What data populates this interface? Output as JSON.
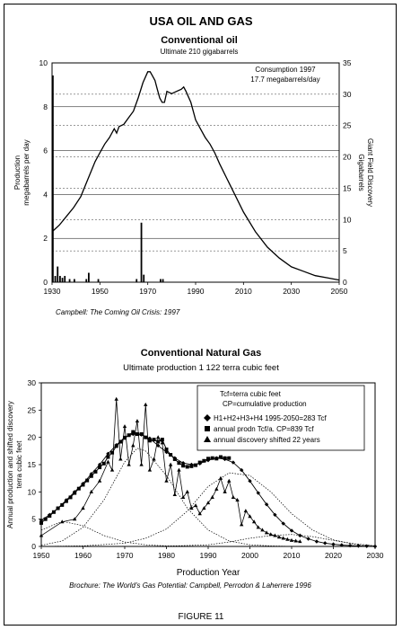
{
  "page_title": "USA OIL AND GAS",
  "figure_label": "FIGURE 11",
  "chart_data": [
    {
      "type": "line",
      "title": "Conventional oil",
      "subtitle": "Ultimate 210 gigabarrels",
      "annotation_line1": "Consumption 1997",
      "annotation_line2": "17.7 megabarrels/day",
      "ylabel_left_line1": "Production",
      "ylabel_left_line2": "megabarrels per day",
      "ylabel_right_line1": "Giant Field Discovery",
      "ylabel_right_line2": "Gigabarrels",
      "caption": "Campbell:  The Coming Oil Crisis:  1997",
      "xlim": [
        1930,
        2050
      ],
      "ylim_left": [
        0,
        10
      ],
      "ylim_right": [
        0,
        35
      ],
      "x_ticks": [
        1930,
        1950,
        1970,
        1990,
        2010,
        2030,
        2050
      ],
      "y_ticks_left": [
        0,
        2,
        4,
        6,
        8,
        10
      ],
      "y_ticks_right": [
        0,
        5,
        10,
        15,
        20,
        25,
        30,
        35
      ],
      "production": {
        "x": [
          1930,
          1933,
          1936,
          1939,
          1942,
          1945,
          1948,
          1950,
          1952,
          1954,
          1956,
          1957,
          1958,
          1960,
          1962,
          1964,
          1966,
          1968,
          1970,
          1971,
          1972,
          1973,
          1974,
          1975,
          1976,
          1977,
          1978,
          1980,
          1982,
          1984,
          1985,
          1986,
          1988,
          1990,
          1992,
          1994,
          1996,
          1998,
          2000,
          2005,
          2010,
          2015,
          2020,
          2025,
          2030,
          2035,
          2040,
          2045,
          2050
        ],
        "y": [
          2.3,
          2.6,
          3.0,
          3.4,
          3.9,
          4.7,
          5.5,
          5.9,
          6.3,
          6.6,
          7.0,
          6.8,
          7.1,
          7.2,
          7.5,
          7.8,
          8.4,
          9.1,
          9.6,
          9.6,
          9.4,
          9.2,
          8.8,
          8.4,
          8.2,
          8.2,
          8.7,
          8.6,
          8.7,
          8.8,
          8.9,
          8.7,
          8.2,
          7.4,
          7.0,
          6.6,
          6.3,
          5.9,
          5.4,
          4.3,
          3.2,
          2.3,
          1.6,
          1.1,
          0.7,
          0.5,
          0.3,
          0.2,
          0.1
        ]
      },
      "discovery_bars": {
        "x": [
          1930,
          1931,
          1932,
          1933,
          1934,
          1935,
          1937,
          1939,
          1944,
          1945,
          1949,
          1965,
          1967,
          1968,
          1975,
          1976
        ],
        "y": [
          33.0,
          1.0,
          2.5,
          1.0,
          0.7,
          1.0,
          0.5,
          0.5,
          0.5,
          1.5,
          0.5,
          0.5,
          9.5,
          1.2,
          0.5,
          0.5
        ]
      }
    },
    {
      "type": "line",
      "title": "Conventional  Natural  Gas",
      "subtitle": "Ultimate production 1 122 terra cubic feet",
      "ylabel_line1": "Annual production and  shifted discovery",
      "ylabel_line2": "terra cubic feet",
      "xlabel": "Production  Year",
      "caption": "Brochure:  The World's Gas Potential:  Campbell, Perrodon & Laherrere 1996",
      "xlim": [
        1950,
        2030
      ],
      "ylim": [
        0,
        30
      ],
      "x_ticks": [
        1950,
        1960,
        1970,
        1980,
        1990,
        2000,
        2010,
        2020,
        2030
      ],
      "y_ticks": [
        0,
        5,
        10,
        15,
        20,
        25,
        30
      ],
      "legend": {
        "note1": "Tcf=terra cubic feet",
        "note2": "CP=cumulative production",
        "entries": [
          "H1+H2+H3+H4 1995-2050=283  Tcf",
          "annual prodn Tcf/a.  CP=839 Tcf",
          "annual discovery shifted 22 years"
        ]
      },
      "series": [
        {
          "x": [
            1950,
            1952,
            1954,
            1956,
            1958,
            1960,
            1962,
            1964,
            1966,
            1968,
            1970,
            1972,
            1974,
            1976,
            1978,
            1980,
            1982,
            1984,
            1986,
            1988,
            1990,
            1992,
            1994,
            1996,
            1998,
            2000,
            2002,
            2004,
            2006,
            2008,
            2010,
            2012,
            2014,
            2016,
            2018,
            2020,
            2022,
            2024,
            2026,
            2028,
            2030
          ],
          "y": [
            4.8,
            5.8,
            7.0,
            8.5,
            10.0,
            11.5,
            13.3,
            15.0,
            17.0,
            18.6,
            20.0,
            20.6,
            20.5,
            19.8,
            18.5,
            17.3,
            16.2,
            15.3,
            15.0,
            15.2,
            15.8,
            16.2,
            16.0,
            15.4,
            14.0,
            12.0,
            9.8,
            7.7,
            5.8,
            4.2,
            2.9,
            2.0,
            1.4,
            0.9,
            0.6,
            0.4,
            0.25,
            0.15,
            0.1,
            0.05,
            0.0
          ]
        },
        {
          "x": [
            1950,
            1951,
            1952,
            1953,
            1954,
            1955,
            1956,
            1957,
            1958,
            1959,
            1960,
            1961,
            1962,
            1963,
            1964,
            1965,
            1966,
            1967,
            1968,
            1969,
            1970,
            1971,
            1972,
            1973,
            1974,
            1975,
            1976,
            1977,
            1978,
            1979,
            1980,
            1981,
            1982,
            1983,
            1984,
            1985,
            1986,
            1987,
            1988,
            1989,
            1990,
            1991,
            1992,
            1993,
            1994,
            1995
          ],
          "y": [
            4.3,
            5.0,
            5.6,
            6.3,
            7.0,
            7.6,
            8.3,
            9.0,
            9.8,
            10.6,
            11.3,
            12.1,
            12.9,
            13.7,
            14.5,
            15.2,
            16.4,
            17.2,
            18.4,
            19.2,
            19.9,
            20.4,
            21.0,
            20.6,
            20.6,
            20.0,
            19.4,
            19.6,
            19.2,
            19.6,
            17.8,
            16.8,
            16.0,
            15.3,
            14.8,
            14.6,
            14.7,
            14.9,
            15.4,
            15.7,
            16.1,
            16.2,
            16.1,
            16.4,
            16.2,
            16.2
          ]
        },
        {
          "x": [
            1950,
            1955,
            1958,
            1960,
            1962,
            1964,
            1966,
            1967,
            1968,
            1969,
            1970,
            1971,
            1972,
            1973,
            1974,
            1975,
            1976,
            1977,
            1978,
            1979,
            1980,
            1981,
            1982,
            1983,
            1984,
            1985,
            1986,
            1987,
            1988,
            1989,
            1990,
            1991,
            1992,
            1993,
            1994,
            1995,
            1996,
            1997,
            1998,
            1999,
            2000,
            2001,
            2002,
            2003,
            2004,
            2005,
            2006,
            2007,
            2008,
            2009,
            2010,
            2011,
            2012
          ],
          "y": [
            2.0,
            4.5,
            5.0,
            7.0,
            10.0,
            12.0,
            15.5,
            14.0,
            27.0,
            16.0,
            22.0,
            15.0,
            18.5,
            23.0,
            15.0,
            26.0,
            14.0,
            16.0,
            20.0,
            19.0,
            12.0,
            15.0,
            9.5,
            14.0,
            9.0,
            10.0,
            7.0,
            7.5,
            6.0,
            7.0,
            8.0,
            9.0,
            10.5,
            12.5,
            10.0,
            12.0,
            9.0,
            8.5,
            4.0,
            6.5,
            5.5,
            4.5,
            3.5,
            3.0,
            2.5,
            2.2,
            2.0,
            1.7,
            1.5,
            1.3,
            1.1,
            1.0,
            0.9
          ]
        },
        {
          "x": [
            1950,
            1955,
            1960,
            1965,
            1970,
            1975,
            1980,
            1985,
            1990,
            1995,
            2000,
            2005,
            2010,
            2015,
            2020,
            2025,
            2030
          ],
          "y": [
            3.0,
            4.6,
            3.8,
            2.0,
            0.8,
            0.3,
            0.1,
            0.05,
            0.0,
            0.0,
            0.0,
            0.0,
            0.0,
            0.0,
            0.0,
            0.0,
            0.0
          ]
        },
        {
          "x": [
            1950,
            1955,
            1960,
            1965,
            1970,
            1973,
            1975,
            1980,
            1985,
            1990,
            1995,
            2000,
            2005,
            2010,
            2015,
            2020,
            2025,
            2030
          ],
          "y": [
            0.2,
            1.0,
            3.5,
            8.5,
            15.5,
            18.0,
            17.5,
            13.0,
            7.0,
            3.0,
            1.0,
            0.3,
            0.1,
            0.0,
            0.0,
            0.0,
            0.0,
            0.0
          ]
        },
        {
          "x": [
            1950,
            1960,
            1970,
            1975,
            1980,
            1985,
            1990,
            1995,
            2000,
            2005,
            2010,
            2015,
            2020,
            2025,
            2030
          ],
          "y": [
            0.0,
            0.1,
            0.6,
            1.5,
            3.2,
            6.5,
            11.0,
            13.5,
            13.0,
            10.0,
            6.0,
            3.0,
            1.2,
            0.4,
            0.1
          ]
        },
        {
          "x": [
            1950,
            1970,
            1980,
            1990,
            1995,
            2000,
            2005,
            2010,
            2015,
            2020,
            2025,
            2030
          ],
          "y": [
            0.0,
            0.0,
            0.05,
            0.3,
            0.8,
            1.5,
            2.0,
            2.2,
            1.8,
            1.1,
            0.5,
            0.1
          ]
        }
      ]
    }
  ]
}
